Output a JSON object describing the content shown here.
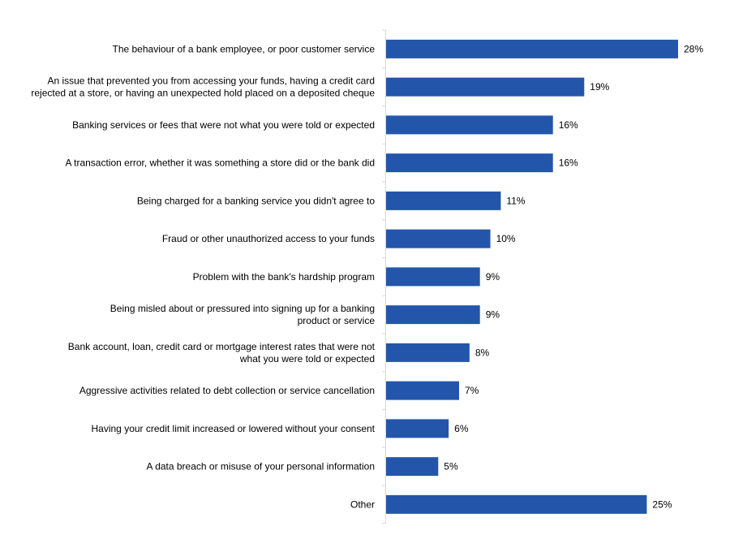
{
  "chart_data": {
    "type": "bar",
    "orientation": "horizontal",
    "categories": [
      [
        "The behaviour of a bank employee, or poor customer service"
      ],
      [
        "An issue that prevented you from accessing your funds, having a credit card",
        "rejected at a store, or having an unexpected hold placed on a deposited cheque"
      ],
      [
        "Banking services or fees that were not what you were told or expected"
      ],
      [
        "A transaction error, whether it was something a store did or the bank did"
      ],
      [
        "Being charged for a banking service you didn't agree to"
      ],
      [
        "Fraud or other unauthorized access to your funds"
      ],
      [
        "Problem with the bank's hardship program"
      ],
      [
        "Being misled about or pressured into signing up for a banking",
        "product or service"
      ],
      [
        "Bank account, loan, credit card or mortgage interest rates that were not",
        "what you were told or expected"
      ],
      [
        "Aggressive activities related to debt collection or service cancellation"
      ],
      [
        "Having your credit limit increased or lowered without your consent"
      ],
      [
        "A data breach or misuse of your personal information"
      ],
      [
        "Other"
      ]
    ],
    "values": [
      28,
      19,
      16,
      16,
      11,
      10,
      9,
      9,
      8,
      7,
      6,
      5,
      25
    ],
    "data_labels": [
      "28%",
      "19%",
      "16%",
      "16%",
      "11%",
      "10%",
      "9%",
      "9%",
      "8%",
      "7%",
      "6%",
      "5%",
      "25%"
    ],
    "unit": "%",
    "xlim": [
      0,
      30
    ],
    "grid": false,
    "legend": "none",
    "colors": {
      "bar": "#2356AB",
      "axis": "#D9D9D9"
    }
  }
}
